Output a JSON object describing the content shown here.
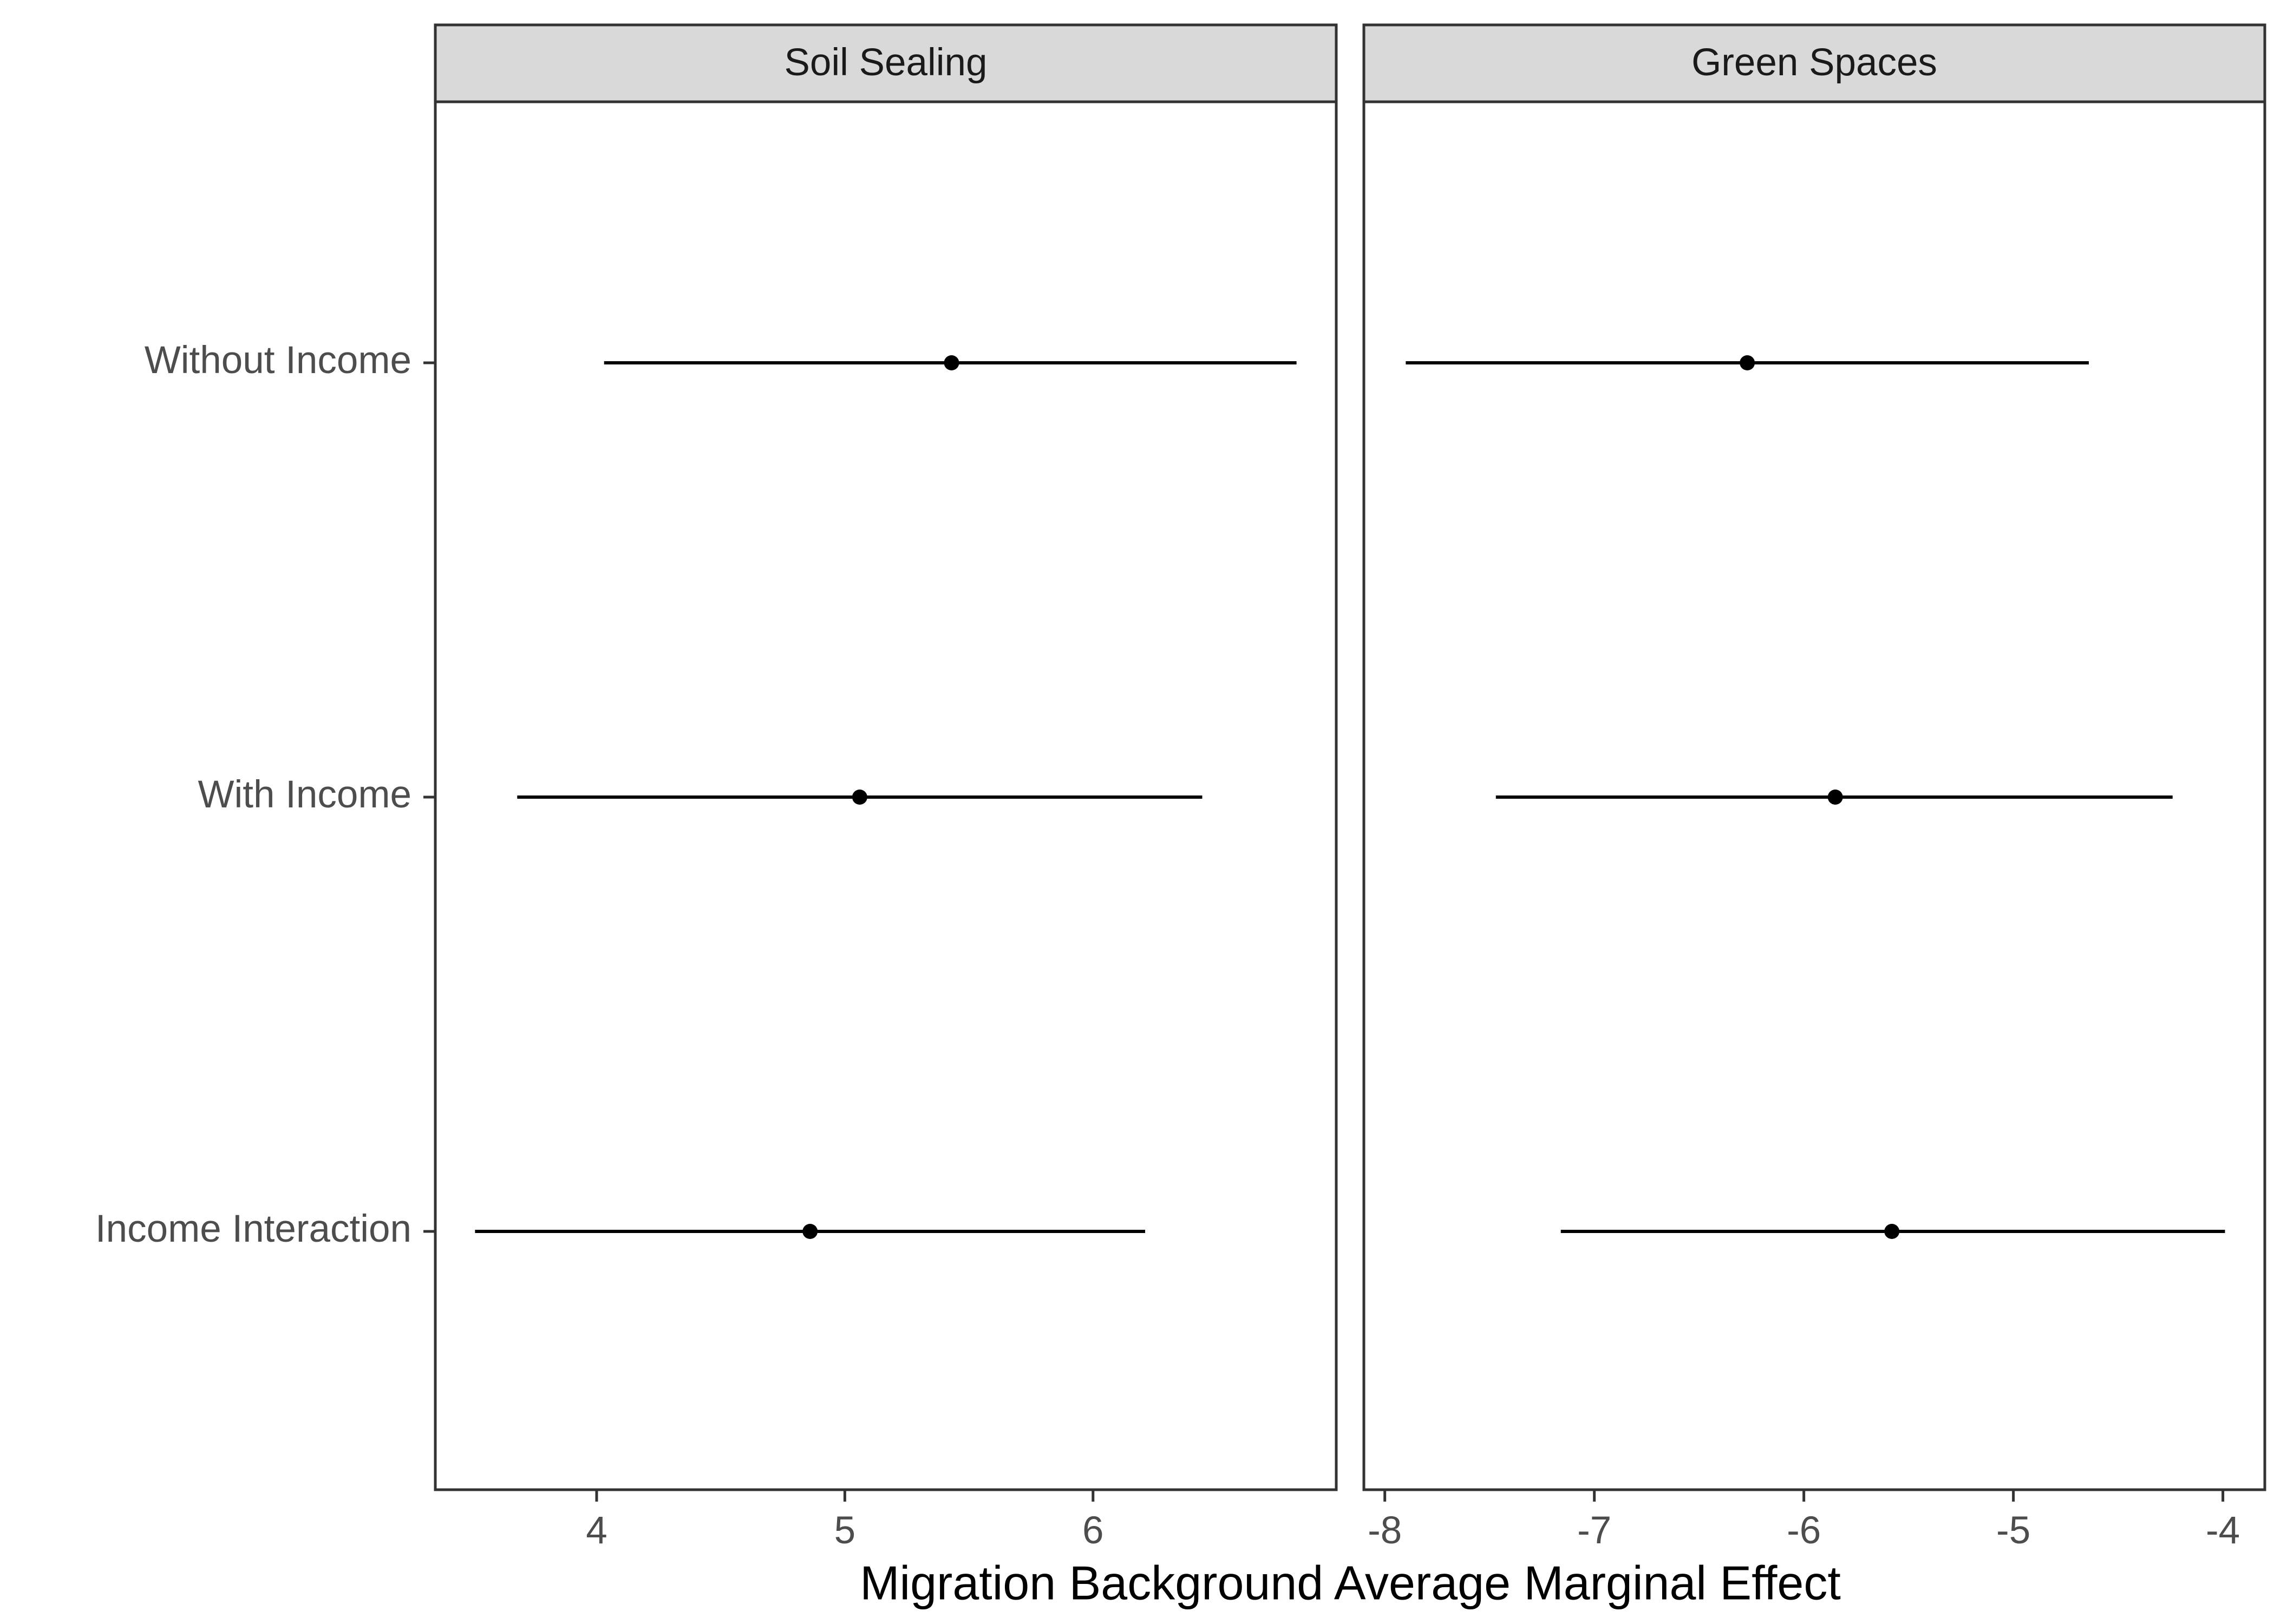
{
  "chart_data": {
    "type": "forest",
    "xlabel": "Migration Background Average Marginal Effect",
    "categories": [
      "Without Income",
      "With Income",
      "Income Interaction"
    ],
    "colors": {
      "point": "#000000",
      "strip_fill": "#d9d9d9",
      "border": "#333333",
      "tick_text": "#4d4d4d"
    },
    "panels": [
      {
        "title": "Soil Sealing",
        "xlim": [
          3.35,
          6.98
        ],
        "ticks": [
          4,
          5,
          6
        ],
        "tick_labels": [
          "4",
          "5",
          "6"
        ],
        "estimates": [
          {
            "category": "Without Income",
            "estimate": 5.43,
            "lower": 4.03,
            "upper": 6.82
          },
          {
            "category": "With Income",
            "estimate": 5.06,
            "lower": 3.68,
            "upper": 6.44
          },
          {
            "category": "Income Interaction",
            "estimate": 4.86,
            "lower": 3.51,
            "upper": 6.21
          }
        ]
      },
      {
        "title": "Green Spaces",
        "xlim": [
          -8.1,
          -3.8
        ],
        "ticks": [
          -8,
          -7,
          -6,
          -5,
          -4
        ],
        "tick_labels": [
          "-8",
          "-7",
          "-6",
          "-5",
          "-4"
        ],
        "estimates": [
          {
            "category": "Without Income",
            "estimate": -6.27,
            "lower": -7.9,
            "upper": -4.64
          },
          {
            "category": "With Income",
            "estimate": -5.85,
            "lower": -7.47,
            "upper": -4.24
          },
          {
            "category": "Income Interaction",
            "estimate": -5.58,
            "lower": -7.16,
            "upper": -3.99
          }
        ]
      }
    ]
  }
}
